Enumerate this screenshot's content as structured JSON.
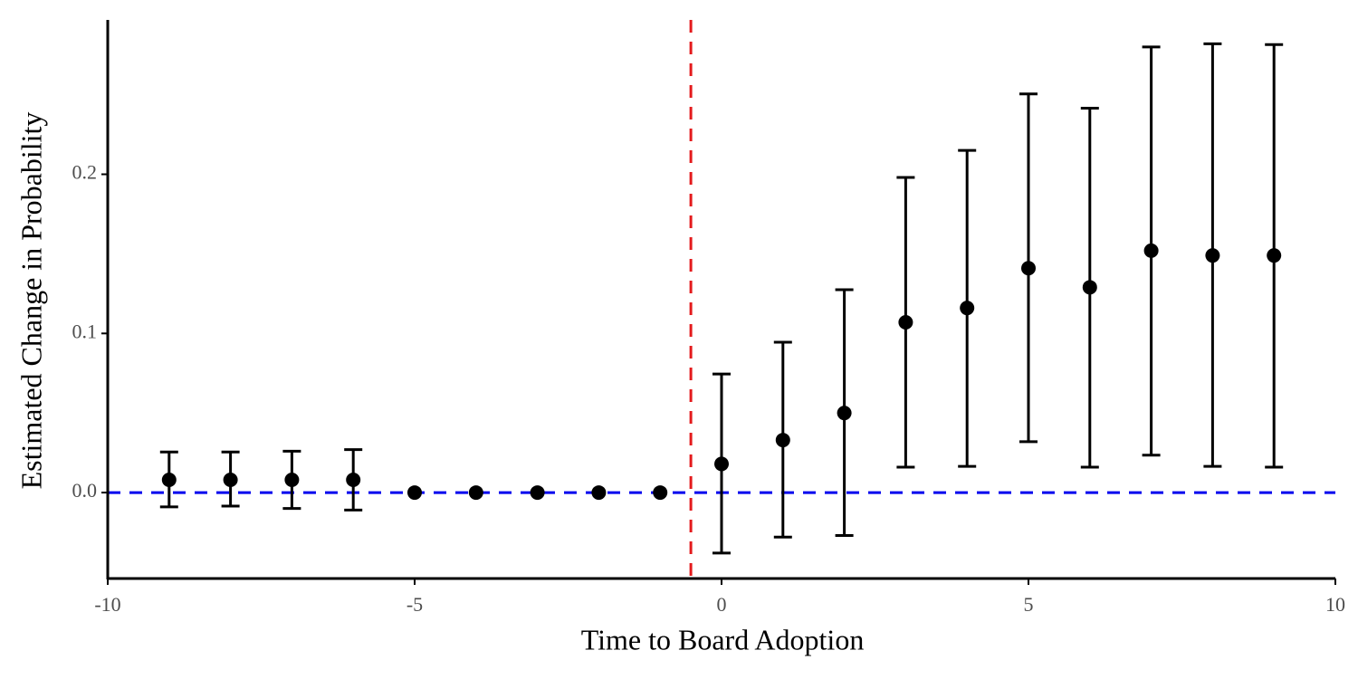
{
  "chart_data": {
    "type": "errorbar",
    "xlabel": "Time to Board Adoption",
    "ylabel": "Estimated Change in Probability",
    "x": [
      -9,
      -8,
      -7,
      -6,
      -5,
      -4,
      -3,
      -2,
      -1,
      0,
      1,
      2,
      3,
      4,
      5,
      6,
      7,
      8,
      9
    ],
    "values": [
      0.008,
      0.008,
      0.008,
      0.008,
      0,
      0,
      0,
      0,
      0,
      0.018,
      0.033,
      0.05,
      0.107,
      0.116,
      0.141,
      0.129,
      0.152,
      0.149,
      0.149
    ],
    "lower": [
      -0.009,
      -0.0085,
      -0.01,
      -0.011,
      null,
      null,
      null,
      null,
      null,
      -0.038,
      -0.028,
      -0.027,
      0.016,
      0.0165,
      0.032,
      0.016,
      0.0235,
      0.0165,
      0.016
    ],
    "upper": [
      0.0255,
      0.0255,
      0.026,
      0.027,
      null,
      null,
      null,
      null,
      null,
      0.0745,
      0.0945,
      0.1275,
      0.198,
      0.215,
      0.2505,
      0.2415,
      0.28,
      0.282,
      0.2815
    ],
    "color": "#000000",
    "vline": -0.5,
    "vline_color": "#e41a1c",
    "hline": 0,
    "hline_color": "#0000ee",
    "xlim": [
      -10,
      10
    ],
    "xticks": [
      -10,
      -5,
      0,
      5,
      10
    ],
    "ylim": [
      -0.054,
      0.297
    ],
    "yticks": [
      {
        "value": 0,
        "label": "0.0"
      },
      {
        "value": 0.1,
        "label": "0.1"
      },
      {
        "value": 0.2,
        "label": "0.2"
      }
    ]
  }
}
